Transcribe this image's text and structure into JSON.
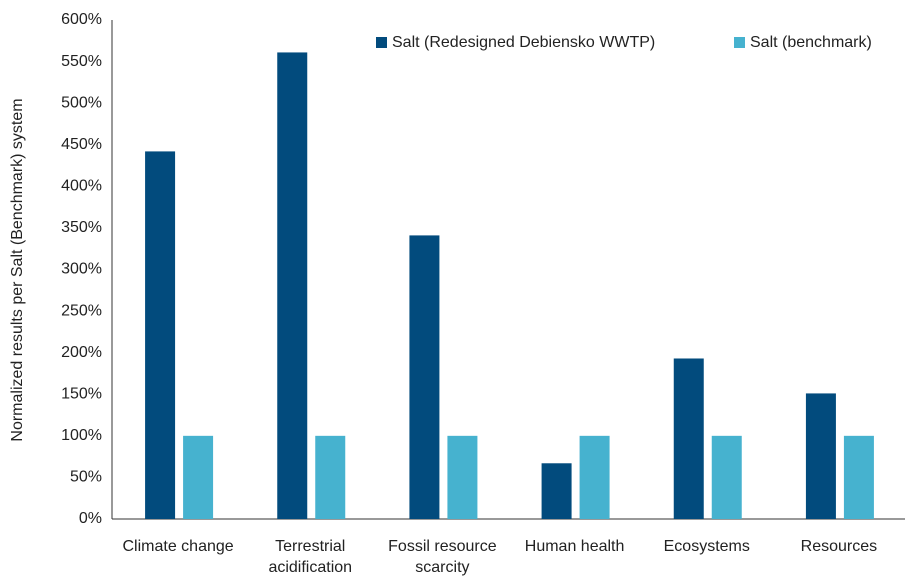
{
  "chart_data": {
    "type": "bar",
    "y_label": "Normalized results per Salt (Benchmark) system",
    "categories": [
      "Climate change",
      "Terrestrial acidification",
      "Fossil resource scarcity",
      "Human health",
      "Ecosystems",
      "Resources"
    ],
    "series": [
      {
        "name": "Salt (Redesigned Debiensko WWTP)",
        "color": "#024b7d",
        "values": [
          442,
          561,
          341,
          67,
          193,
          151
        ]
      },
      {
        "name": "Salt (benchmark)",
        "color": "#46b2cf",
        "values": [
          100,
          100,
          100,
          100,
          100,
          100
        ]
      }
    ],
    "ylim": [
      0,
      600
    ],
    "yticks": [
      {
        "value": 0,
        "label": "0%"
      },
      {
        "value": 50,
        "label": "50%"
      },
      {
        "value": 100,
        "label": "100%"
      },
      {
        "value": 150,
        "label": "150%"
      },
      {
        "value": 200,
        "label": "200%"
      },
      {
        "value": 250,
        "label": "250%"
      },
      {
        "value": 300,
        "label": "300%"
      },
      {
        "value": 350,
        "label": "350%"
      },
      {
        "value": 400,
        "label": "400%"
      },
      {
        "value": 450,
        "label": "450%"
      },
      {
        "value": 500,
        "label": "500%"
      },
      {
        "value": 550,
        "label": "550%"
      },
      {
        "value": 600,
        "label": "600%"
      }
    ],
    "legend": "top-right"
  }
}
